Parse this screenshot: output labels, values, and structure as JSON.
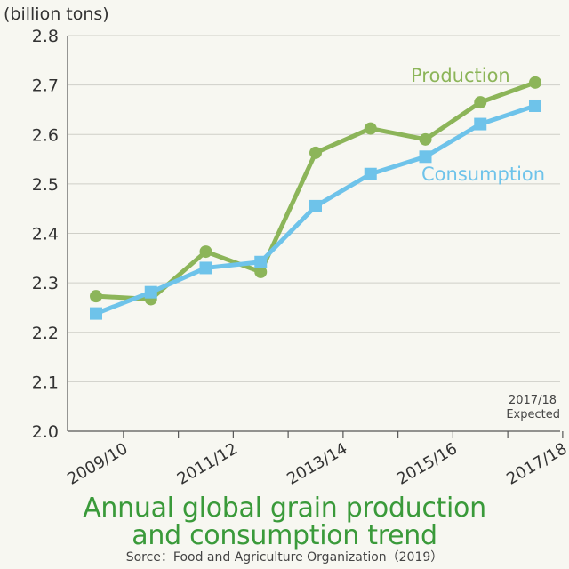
{
  "chart_data": {
    "type": "line",
    "unit_label": "(billion tons)",
    "x": [
      "2009/10",
      "2010/11",
      "2011/12",
      "2012/13",
      "2013/14",
      "2014/15",
      "2015/16",
      "2016/17",
      "2017/18"
    ],
    "x_tick_labels": [
      "2009/10",
      "2011/12",
      "2013/14",
      "2015/16",
      "2017/18"
    ],
    "y_ticks": [
      "2.0",
      "2.1",
      "2.2",
      "2.3",
      "2.4",
      "2.5",
      "2.6",
      "2.7",
      "2.8"
    ],
    "ylim": [
      2.0,
      2.8
    ],
    "grid": true,
    "series": [
      {
        "name": "Production",
        "color": "#8cb559",
        "marker": "circle",
        "values": [
          2.273,
          2.267,
          2.363,
          2.322,
          2.563,
          2.612,
          2.59,
          2.665,
          2.705
        ]
      },
      {
        "name": "Consumption",
        "color": "#6ec3ea",
        "marker": "square",
        "values": [
          2.238,
          2.281,
          2.33,
          2.342,
          2.455,
          2.52,
          2.555,
          2.621,
          2.658
        ]
      }
    ],
    "annotation": [
      "2017/18",
      "Expected"
    ]
  },
  "title_lines": [
    "Annual global grain production",
    "and consumption trend"
  ],
  "source": "Sorce：Food and Agriculture Organization（2019）"
}
